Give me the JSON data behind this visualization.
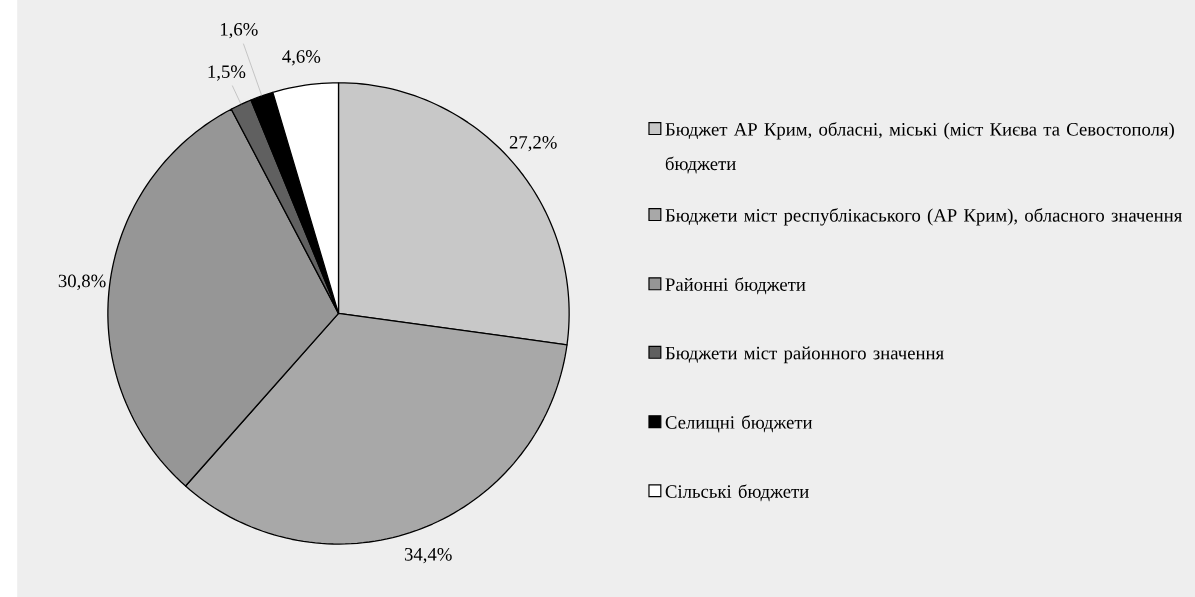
{
  "chart_data": {
    "type": "pie",
    "categories": [
      "Бюджет АР Крим, обласні, міські (міст Києва та Севостополя) бюджети",
      "Бюджети міст республікаського (АР Крим), обласного значення",
      "Районні бюджети",
      "Бюджети міст районного значення",
      "Селищні бюджети",
      "Сільські бюджети"
    ],
    "values": [
      27.2,
      34.4,
      30.8,
      1.5,
      1.6,
      4.6
    ],
    "colors": [
      "#c8c8c8",
      "#a8a8a8",
      "#969696",
      "#606060",
      "#000000",
      "#ffffff"
    ],
    "value_labels": [
      "27,2%",
      "34,4%",
      "30,8%",
      "1,5%",
      "1,6%",
      "4,6%"
    ],
    "legend": "right"
  }
}
